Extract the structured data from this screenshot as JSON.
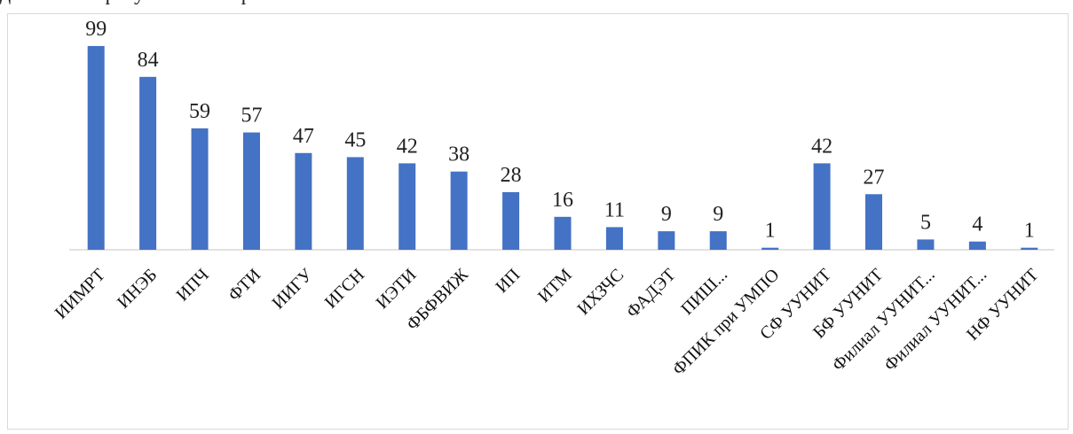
{
  "document": {
    "top_text": "данных по факультетам и филиалам"
  },
  "chart_data": {
    "type": "bar",
    "categories": [
      "ИИМРТ",
      "ИНЭБ",
      "ИПЧ",
      "ФТИ",
      "ИИГУ",
      "ИГСН",
      "ИЭТИ",
      "ФБФВИЖ",
      "ИП",
      "ИТМ",
      "ИХЗЧС",
      "ФАДЭТ",
      "ПИШ...",
      "ФПИК при УМПО",
      "СФ УУНИТ",
      "БФ УУНИТ",
      "Филиал УУНИТ...",
      "Филиал УУНИТ...",
      "НФ УУНИТ"
    ],
    "values": [
      99,
      84,
      59,
      57,
      47,
      45,
      42,
      38,
      28,
      16,
      11,
      9,
      9,
      1,
      42,
      27,
      5,
      4,
      1
    ],
    "title": "",
    "xlabel": "",
    "ylabel": "",
    "ylim": [
      0,
      105
    ],
    "grid": false,
    "legend": "none",
    "bar_color": "#4472c4",
    "axis_color": "#d9d9d9",
    "label_color": "#111111"
  }
}
